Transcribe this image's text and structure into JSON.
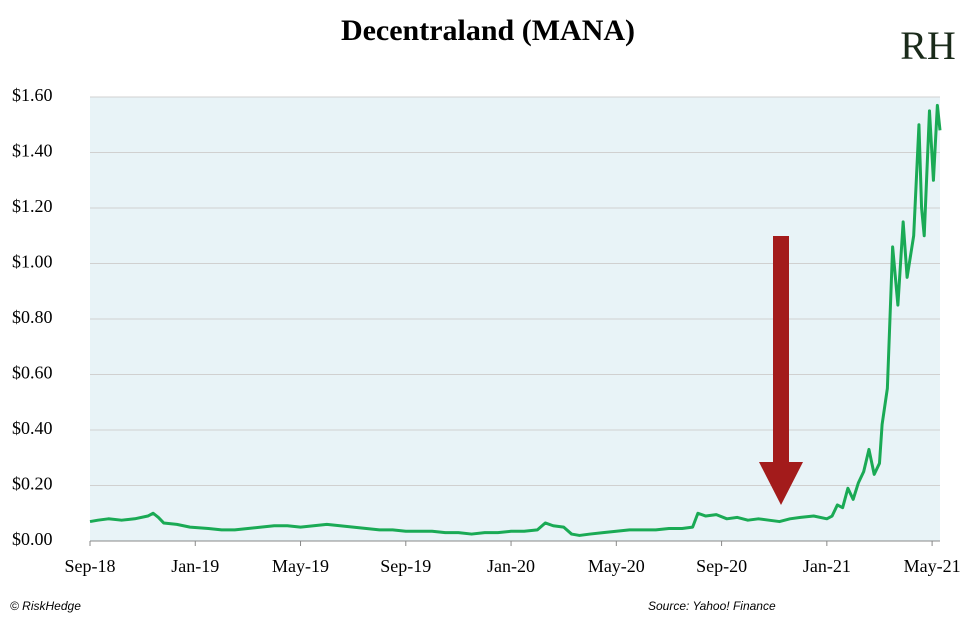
{
  "chart_data": {
    "type": "line",
    "title": "Decentraland (MANA)",
    "logo": "RH",
    "credit": "© RiskHedge",
    "source": "Source: Yahoo! Finance",
    "background": "#e8f3f7",
    "grid": true,
    "xlim": [
      0,
      32.3
    ],
    "xticks": [
      {
        "value": 0,
        "label": "Sep-18"
      },
      {
        "value": 4,
        "label": "Jan-19"
      },
      {
        "value": 8,
        "label": "May-19"
      },
      {
        "value": 12,
        "label": "Sep-19"
      },
      {
        "value": 16,
        "label": "Jan-20"
      },
      {
        "value": 20,
        "label": "May-20"
      },
      {
        "value": 24,
        "label": "Sep-20"
      },
      {
        "value": 28,
        "label": "Jan-21"
      },
      {
        "value": 32,
        "label": "May-21"
      }
    ],
    "ylim": [
      0,
      1.6
    ],
    "yticks": [
      {
        "value": 0,
        "label": "$0.00"
      },
      {
        "value": 0.2,
        "label": "$0.20"
      },
      {
        "value": 0.4,
        "label": "$0.40"
      },
      {
        "value": 0.6,
        "label": "$0.60"
      },
      {
        "value": 0.8,
        "label": "$0.80"
      },
      {
        "value": 1.0,
        "label": "$1.00"
      },
      {
        "value": 1.2,
        "label": "$1.20"
      },
      {
        "value": 1.4,
        "label": "$1.40"
      },
      {
        "value": 1.6,
        "label": "$1.60"
      }
    ],
    "x": [
      0,
      0.3,
      0.7,
      1.2,
      1.7,
      2.2,
      2.4,
      2.6,
      2.8,
      3.3,
      3.8,
      4.5,
      5,
      5.5,
      6,
      6.5,
      7,
      7.5,
      8,
      8.5,
      9,
      9.5,
      10,
      10.5,
      11,
      11.5,
      12,
      12.5,
      13,
      13.5,
      14,
      14.5,
      15,
      15.5,
      16,
      16.5,
      17,
      17.3,
      17.6,
      18,
      18.3,
      18.6,
      19,
      19.5,
      20,
      20.5,
      21,
      21.5,
      22,
      22.5,
      22.9,
      23.1,
      23.4,
      23.8,
      24.2,
      24.6,
      25,
      25.4,
      25.8,
      26.2,
      26.6,
      27,
      27.5,
      28,
      28.2,
      28.4,
      28.6,
      28.8,
      29,
      29.2,
      29.4,
      29.6,
      29.8,
      30,
      30.1,
      30.3,
      30.5,
      30.7,
      30.9,
      31.05,
      31.3,
      31.5,
      31.6,
      31.7,
      31.9,
      32.05,
      32.2,
      32.3
    ],
    "series": [
      {
        "name": "MANA",
        "color": "#1aaa55",
        "values": [
          0.07,
          0.075,
          0.08,
          0.075,
          0.08,
          0.09,
          0.1,
          0.085,
          0.065,
          0.06,
          0.05,
          0.045,
          0.04,
          0.04,
          0.045,
          0.05,
          0.055,
          0.055,
          0.05,
          0.055,
          0.06,
          0.055,
          0.05,
          0.045,
          0.04,
          0.04,
          0.035,
          0.035,
          0.035,
          0.03,
          0.03,
          0.025,
          0.03,
          0.03,
          0.035,
          0.035,
          0.04,
          0.065,
          0.055,
          0.05,
          0.025,
          0.02,
          0.025,
          0.03,
          0.035,
          0.04,
          0.04,
          0.04,
          0.045,
          0.045,
          0.05,
          0.1,
          0.09,
          0.095,
          0.08,
          0.085,
          0.075,
          0.08,
          0.075,
          0.07,
          0.08,
          0.085,
          0.09,
          0.08,
          0.09,
          0.13,
          0.12,
          0.19,
          0.15,
          0.21,
          0.25,
          0.33,
          0.24,
          0.28,
          0.42,
          0.55,
          1.06,
          0.85,
          1.15,
          0.95,
          1.1,
          1.5,
          1.2,
          1.1,
          1.55,
          1.3,
          1.57,
          1.48
        ]
      }
    ]
  }
}
